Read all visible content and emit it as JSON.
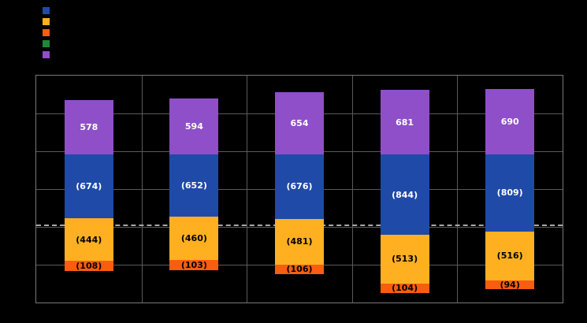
{
  "chart_data": {
    "type": "stacked-bar",
    "background": "#000000",
    "categories": [
      "",
      "",
      "",
      "",
      ""
    ],
    "series": [
      {
        "name": "purple",
        "color": "#8E4FC8",
        "label_color": "#FFFFFF",
        "parenthesized": false,
        "direction": "up",
        "values": [
          578,
          594,
          654,
          681,
          690
        ]
      },
      {
        "name": "blue",
        "color": "#1F4AA8",
        "label_color": "#FFFFFF",
        "parenthesized": true,
        "direction": "down",
        "values": [
          674,
          652,
          676,
          844,
          809
        ]
      },
      {
        "name": "gold",
        "color": "#FFB020",
        "label_color": "#000000",
        "parenthesized": true,
        "direction": "down",
        "values": [
          444,
          460,
          481,
          513,
          516
        ]
      },
      {
        "name": "orange",
        "color": "#F95D0F",
        "label_color": "#000000",
        "parenthesized": true,
        "direction": "down",
        "values": [
          108,
          103,
          106,
          104,
          94
        ]
      }
    ],
    "legend": [
      {
        "color": "#1F4AA8",
        "label": ""
      },
      {
        "color": "#FFB020",
        "label": ""
      },
      {
        "color": "#F95D0F",
        "label": ""
      },
      {
        "color": "#218739",
        "label": ""
      },
      {
        "color": "#8E4FC8",
        "label": ""
      }
    ],
    "grid": {
      "h_divisions": 6,
      "v_divisions": 5,
      "line_color": "#5a5a5a"
    },
    "dashed_reference_line": {
      "present": true,
      "color": "#a8a8a8"
    }
  }
}
